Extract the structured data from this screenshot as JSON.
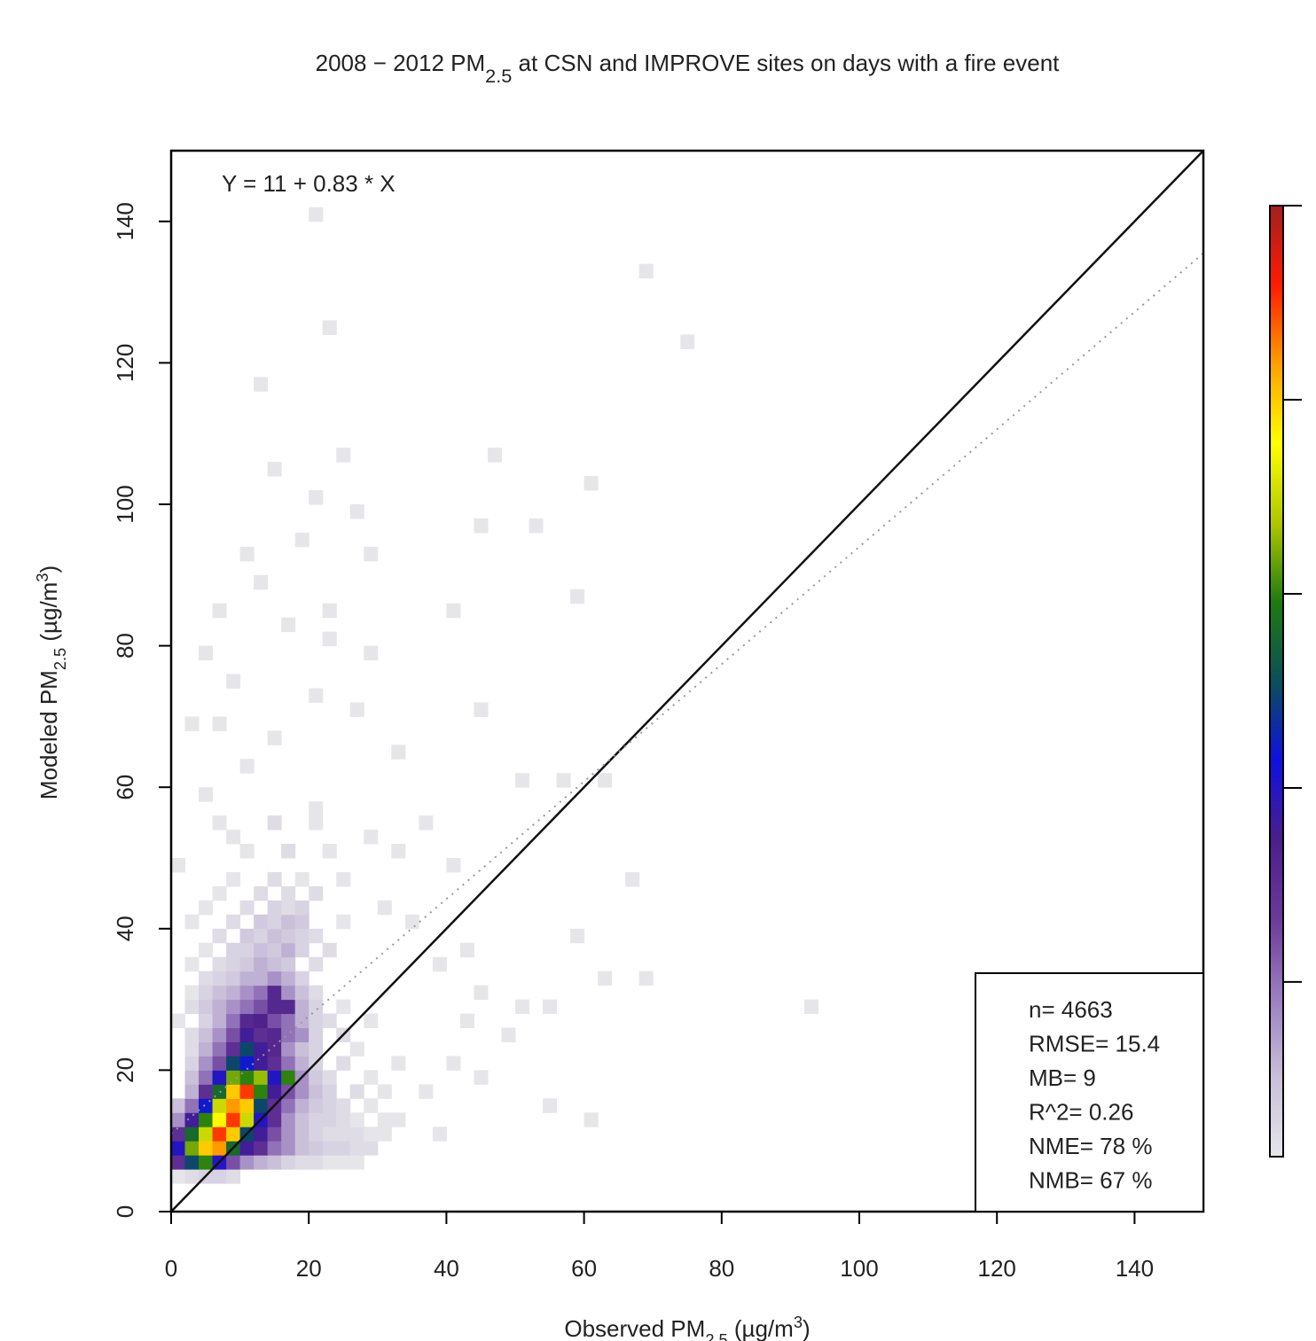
{
  "chart_data": {
    "type": "bin2d",
    "title": [
      {
        "text": "2008 − 2012 PM"
      },
      {
        "text": "2.5",
        "shift": "sub"
      },
      {
        "text": " at CSN and IMPROVE sites on days with a fire event"
      }
    ],
    "x_label": [
      {
        "text": "Observed PM"
      },
      {
        "text": "2.5",
        "shift": "sub"
      },
      {
        "text": " (µg/m"
      },
      {
        "text": "3",
        "shift": "super"
      },
      {
        "text": ")"
      }
    ],
    "y_label": [
      {
        "text": "Modeled PM"
      },
      {
        "text": "2.5",
        "shift": "sub"
      },
      {
        "text": " (µg/m"
      },
      {
        "text": "3",
        "shift": "super"
      },
      {
        "text": ")"
      }
    ],
    "xlim": [
      0,
      150
    ],
    "ylim": [
      0,
      150
    ],
    "xticks": [
      0,
      20,
      40,
      60,
      80,
      100,
      120,
      140
    ],
    "yticks": [
      0,
      20,
      40,
      60,
      80,
      100,
      120,
      140
    ],
    "bin_size": 2,
    "clim": [
      1,
      50
    ],
    "cticks": [
      10,
      20,
      30,
      40,
      50
    ],
    "colormap": [
      "#e6e6ea",
      "#c9bfd9",
      "#9b7fc0",
      "#6a3a9a",
      "#4b1f8a",
      "#1010e0",
      "#0b4f5a",
      "#1f7a10",
      "#b0c800",
      "#ffff00",
      "#ffa000",
      "#ff1a00",
      "#a02020"
    ],
    "regression": {
      "label": "Y = 11 + 0.83 * X",
      "intercept": 11,
      "slope": 0.83
    },
    "stats": [
      "n= 4663",
      "RMSE= 15.4",
      "MB= 9",
      "R^2= 0.26",
      "NME= 78 %",
      "NMB= 67 %"
    ],
    "cells": [
      [
        0,
        4,
        1
      ],
      [
        2,
        4,
        2
      ],
      [
        4,
        4,
        3
      ],
      [
        6,
        4,
        3
      ],
      [
        8,
        4,
        2
      ],
      [
        0,
        6,
        15
      ],
      [
        2,
        6,
        25
      ],
      [
        4,
        6,
        30
      ],
      [
        6,
        6,
        20
      ],
      [
        8,
        6,
        12
      ],
      [
        10,
        6,
        8
      ],
      [
        12,
        6,
        6
      ],
      [
        14,
        6,
        5
      ],
      [
        16,
        6,
        3
      ],
      [
        18,
        6,
        2
      ],
      [
        20,
        6,
        2
      ],
      [
        22,
        6,
        1
      ],
      [
        24,
        6,
        1
      ],
      [
        26,
        6,
        1
      ],
      [
        0,
        8,
        20
      ],
      [
        2,
        8,
        32
      ],
      [
        4,
        8,
        40
      ],
      [
        6,
        8,
        42
      ],
      [
        8,
        8,
        28
      ],
      [
        10,
        8,
        18
      ],
      [
        12,
        8,
        15
      ],
      [
        14,
        8,
        10
      ],
      [
        16,
        8,
        8
      ],
      [
        18,
        8,
        5
      ],
      [
        20,
        8,
        4
      ],
      [
        22,
        8,
        3
      ],
      [
        24,
        8,
        3
      ],
      [
        26,
        8,
        2
      ],
      [
        28,
        8,
        2
      ],
      [
        0,
        10,
        15
      ],
      [
        2,
        10,
        28
      ],
      [
        4,
        10,
        35
      ],
      [
        6,
        10,
        45
      ],
      [
        8,
        10,
        40
      ],
      [
        10,
        10,
        25
      ],
      [
        12,
        10,
        18
      ],
      [
        14,
        10,
        12
      ],
      [
        16,
        10,
        8
      ],
      [
        18,
        10,
        5
      ],
      [
        20,
        10,
        3
      ],
      [
        22,
        10,
        2
      ],
      [
        24,
        10,
        2
      ],
      [
        26,
        10,
        2
      ],
      [
        28,
        10,
        1
      ],
      [
        30,
        10,
        1
      ],
      [
        0,
        12,
        8
      ],
      [
        2,
        12,
        18
      ],
      [
        4,
        12,
        30
      ],
      [
        6,
        12,
        38
      ],
      [
        8,
        12,
        45
      ],
      [
        10,
        12,
        35
      ],
      [
        12,
        12,
        20
      ],
      [
        14,
        12,
        15
      ],
      [
        16,
        12,
        8
      ],
      [
        18,
        12,
        5
      ],
      [
        20,
        12,
        3
      ],
      [
        22,
        12,
        3
      ],
      [
        24,
        12,
        2
      ],
      [
        26,
        12,
        1
      ],
      [
        30,
        12,
        1
      ],
      [
        0,
        14,
        5
      ],
      [
        2,
        14,
        10
      ],
      [
        4,
        14,
        22
      ],
      [
        6,
        14,
        35
      ],
      [
        8,
        14,
        42
      ],
      [
        10,
        14,
        40
      ],
      [
        12,
        14,
        25
      ],
      [
        14,
        14,
        15
      ],
      [
        16,
        14,
        10
      ],
      [
        18,
        14,
        6
      ],
      [
        20,
        14,
        4
      ],
      [
        22,
        14,
        3
      ],
      [
        24,
        14,
        2
      ],
      [
        28,
        14,
        1
      ],
      [
        2,
        16,
        6
      ],
      [
        4,
        16,
        15
      ],
      [
        6,
        16,
        28
      ],
      [
        8,
        16,
        40
      ],
      [
        10,
        16,
        45
      ],
      [
        12,
        16,
        30
      ],
      [
        14,
        16,
        18
      ],
      [
        16,
        16,
        12
      ],
      [
        18,
        16,
        8
      ],
      [
        20,
        16,
        5
      ],
      [
        22,
        16,
        3
      ],
      [
        26,
        16,
        2
      ],
      [
        30,
        16,
        1
      ],
      [
        2,
        18,
        5
      ],
      [
        4,
        18,
        10
      ],
      [
        6,
        18,
        20
      ],
      [
        8,
        18,
        32
      ],
      [
        10,
        18,
        30
      ],
      [
        12,
        18,
        33
      ],
      [
        14,
        18,
        20
      ],
      [
        16,
        18,
        30
      ],
      [
        18,
        18,
        8
      ],
      [
        20,
        18,
        4
      ],
      [
        22,
        18,
        2
      ],
      [
        28,
        18,
        1
      ],
      [
        2,
        20,
        3
      ],
      [
        4,
        20,
        8
      ],
      [
        6,
        20,
        12
      ],
      [
        8,
        20,
        25
      ],
      [
        10,
        20,
        22
      ],
      [
        12,
        20,
        18
      ],
      [
        14,
        20,
        15
      ],
      [
        16,
        20,
        10
      ],
      [
        18,
        20,
        6
      ],
      [
        20,
        20,
        3
      ],
      [
        24,
        20,
        2
      ],
      [
        32,
        20,
        1
      ],
      [
        2,
        22,
        2
      ],
      [
        4,
        22,
        6
      ],
      [
        6,
        22,
        10
      ],
      [
        8,
        22,
        15
      ],
      [
        10,
        22,
        25
      ],
      [
        12,
        22,
        18
      ],
      [
        14,
        22,
        16
      ],
      [
        16,
        22,
        8
      ],
      [
        18,
        22,
        5
      ],
      [
        20,
        22,
        3
      ],
      [
        26,
        22,
        1
      ],
      [
        2,
        24,
        2
      ],
      [
        4,
        24,
        5
      ],
      [
        6,
        24,
        8
      ],
      [
        8,
        24,
        12
      ],
      [
        10,
        24,
        18
      ],
      [
        12,
        24,
        15
      ],
      [
        14,
        24,
        16
      ],
      [
        16,
        24,
        10
      ],
      [
        18,
        24,
        8
      ],
      [
        20,
        24,
        3
      ],
      [
        24,
        24,
        2
      ],
      [
        0,
        26,
        1
      ],
      [
        4,
        26,
        3
      ],
      [
        6,
        26,
        6
      ],
      [
        8,
        26,
        10
      ],
      [
        10,
        26,
        16
      ],
      [
        12,
        26,
        17
      ],
      [
        14,
        26,
        12
      ],
      [
        16,
        26,
        10
      ],
      [
        18,
        26,
        6
      ],
      [
        20,
        26,
        3
      ],
      [
        22,
        26,
        2
      ],
      [
        28,
        26,
        1
      ],
      [
        2,
        28,
        2
      ],
      [
        4,
        28,
        4
      ],
      [
        6,
        28,
        6
      ],
      [
        8,
        28,
        8
      ],
      [
        10,
        28,
        10
      ],
      [
        12,
        28,
        12
      ],
      [
        14,
        28,
        16
      ],
      [
        16,
        28,
        16
      ],
      [
        18,
        28,
        6
      ],
      [
        20,
        28,
        3
      ],
      [
        24,
        28,
        1
      ],
      [
        2,
        30,
        1
      ],
      [
        4,
        30,
        3
      ],
      [
        6,
        30,
        5
      ],
      [
        8,
        30,
        6
      ],
      [
        10,
        30,
        8
      ],
      [
        12,
        30,
        10
      ],
      [
        14,
        30,
        16
      ],
      [
        16,
        30,
        8
      ],
      [
        18,
        30,
        5
      ],
      [
        20,
        30,
        2
      ],
      [
        4,
        32,
        2
      ],
      [
        6,
        32,
        3
      ],
      [
        8,
        32,
        4
      ],
      [
        10,
        32,
        6
      ],
      [
        12,
        32,
        6
      ],
      [
        14,
        32,
        8
      ],
      [
        16,
        32,
        6
      ],
      [
        18,
        32,
        3
      ],
      [
        2,
        34,
        1
      ],
      [
        6,
        34,
        2
      ],
      [
        8,
        34,
        3
      ],
      [
        10,
        34,
        4
      ],
      [
        12,
        34,
        6
      ],
      [
        14,
        34,
        5
      ],
      [
        16,
        34,
        4
      ],
      [
        20,
        34,
        2
      ],
      [
        4,
        36,
        1
      ],
      [
        8,
        36,
        3
      ],
      [
        10,
        36,
        3
      ],
      [
        12,
        36,
        5
      ],
      [
        14,
        36,
        4
      ],
      [
        16,
        36,
        6
      ],
      [
        18,
        36,
        3
      ],
      [
        22,
        36,
        2
      ],
      [
        6,
        38,
        2
      ],
      [
        10,
        38,
        4
      ],
      [
        12,
        38,
        3
      ],
      [
        14,
        38,
        5
      ],
      [
        16,
        38,
        4
      ],
      [
        18,
        38,
        3
      ],
      [
        20,
        38,
        2
      ],
      [
        2,
        40,
        1
      ],
      [
        8,
        40,
        2
      ],
      [
        12,
        40,
        4
      ],
      [
        14,
        40,
        3
      ],
      [
        16,
        40,
        5
      ],
      [
        18,
        40,
        4
      ],
      [
        24,
        40,
        1
      ],
      [
        4,
        42,
        1
      ],
      [
        10,
        42,
        2
      ],
      [
        14,
        42,
        3
      ],
      [
        16,
        42,
        2
      ],
      [
        18,
        42,
        3
      ],
      [
        6,
        44,
        1
      ],
      [
        12,
        44,
        2
      ],
      [
        16,
        44,
        2
      ],
      [
        20,
        44,
        2
      ],
      [
        8,
        46,
        1
      ],
      [
        14,
        46,
        2
      ],
      [
        18,
        46,
        1
      ],
      [
        10,
        50,
        1
      ],
      [
        16,
        50,
        2
      ],
      [
        22,
        50,
        1
      ],
      [
        6,
        54,
        1
      ],
      [
        14,
        54,
        2
      ],
      [
        20,
        54,
        1
      ],
      [
        0,
        48,
        1
      ],
      [
        4,
        58,
        1
      ],
      [
        6,
        68,
        1
      ],
      [
        8,
        52,
        1
      ],
      [
        10,
        62,
        1
      ],
      [
        14,
        66,
        1
      ],
      [
        20,
        72,
        1
      ],
      [
        22,
        80,
        1
      ],
      [
        26,
        70,
        1
      ],
      [
        4,
        78,
        1
      ],
      [
        12,
        88,
        1
      ],
      [
        18,
        94,
        1
      ],
      [
        22,
        84,
        1
      ],
      [
        28,
        92,
        1
      ],
      [
        14,
        104,
        1
      ],
      [
        20,
        100,
        1
      ],
      [
        24,
        106,
        1
      ],
      [
        12,
        116,
        1
      ],
      [
        22,
        124,
        1
      ],
      [
        20,
        140,
        1
      ],
      [
        44,
        96,
        1
      ],
      [
        46,
        106,
        1
      ],
      [
        60,
        102,
        1
      ],
      [
        52,
        96,
        1
      ],
      [
        68,
        132,
        1
      ],
      [
        74,
        122,
        1
      ],
      [
        92,
        28,
        1
      ],
      [
        66,
        46,
        1
      ],
      [
        68,
        32,
        1
      ],
      [
        36,
        54,
        1
      ],
      [
        40,
        48,
        1
      ],
      [
        30,
        42,
        1
      ],
      [
        34,
        40,
        1
      ],
      [
        38,
        34,
        1
      ],
      [
        42,
        36,
        1
      ],
      [
        44,
        30,
        1
      ],
      [
        50,
        28,
        1
      ],
      [
        54,
        28,
        1
      ],
      [
        58,
        38,
        1
      ],
      [
        62,
        32,
        1
      ],
      [
        48,
        24,
        1
      ],
      [
        54,
        14,
        1
      ],
      [
        60,
        12,
        1
      ],
      [
        38,
        10,
        1
      ],
      [
        32,
        12,
        1
      ],
      [
        36,
        16,
        1
      ],
      [
        40,
        20,
        1
      ],
      [
        44,
        18,
        1
      ],
      [
        42,
        26,
        1
      ],
      [
        50,
        60,
        1
      ],
      [
        56,
        60,
        1
      ],
      [
        62,
        60,
        1
      ],
      [
        28,
        78,
        1
      ],
      [
        28,
        52,
        1
      ],
      [
        32,
        50,
        1
      ],
      [
        24,
        46,
        1
      ],
      [
        20,
        56,
        1
      ],
      [
        16,
        82,
        1
      ],
      [
        2,
        68,
        1
      ],
      [
        8,
        74,
        1
      ],
      [
        6,
        84,
        1
      ],
      [
        10,
        92,
        1
      ],
      [
        32,
        64,
        1
      ],
      [
        44,
        70,
        1
      ],
      [
        58,
        86,
        1
      ],
      [
        40,
        84,
        1
      ],
      [
        26,
        98,
        1
      ]
    ]
  }
}
